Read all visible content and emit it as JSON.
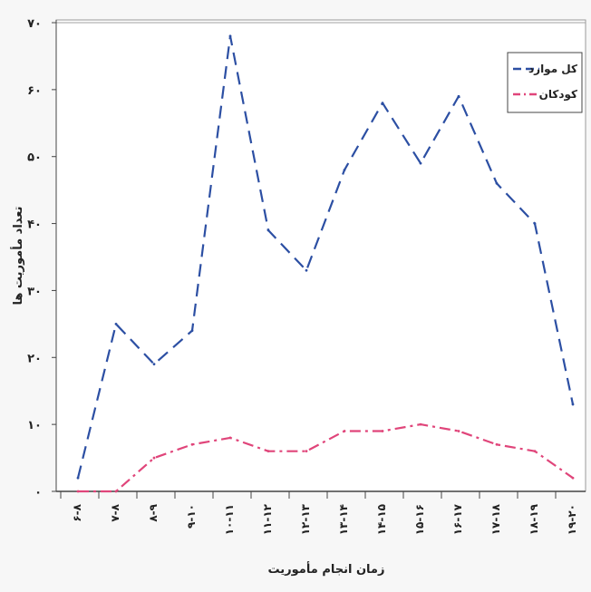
{
  "chart_data": {
    "type": "line",
    "categories": [
      "۶-۸",
      "۷-۸",
      "۸-۹",
      "۹-۱۰",
      "۱۰-۱۱",
      "۱۱-۱۲",
      "۱۲-۱۳",
      "۱۳-۱۴",
      "۱۴-۱۵",
      "۱۵-۱۶",
      "۱۶-۱۷",
      "۱۷-۱۸",
      "۱۸-۱۹",
      "۱۹-۲۰"
    ],
    "series": [
      {
        "name": "کل موارد",
        "color": "#2c4fa3",
        "values": [
          2,
          25,
          19,
          24,
          68,
          39,
          33,
          48,
          58,
          49,
          59,
          46,
          40,
          13
        ]
      },
      {
        "name": "کودکان",
        "color": "#e0457a",
        "values": [
          0,
          0,
          5,
          7,
          8,
          6,
          6,
          9,
          9,
          10,
          9,
          7,
          6,
          2
        ]
      }
    ],
    "xlabel": "زمان انجام مأموریت",
    "ylabel": "تعداد مأموریت ها",
    "ylim": [
      0,
      70
    ],
    "yticks": [
      0,
      10,
      20,
      30,
      40,
      50,
      60,
      70
    ],
    "ytick_labels": [
      "۰",
      "۱۰",
      "۲۰",
      "۳۰",
      "۴۰",
      "۵۰",
      "۶۰",
      "۷۰"
    ],
    "legend_position": "top-right",
    "grid": false
  }
}
